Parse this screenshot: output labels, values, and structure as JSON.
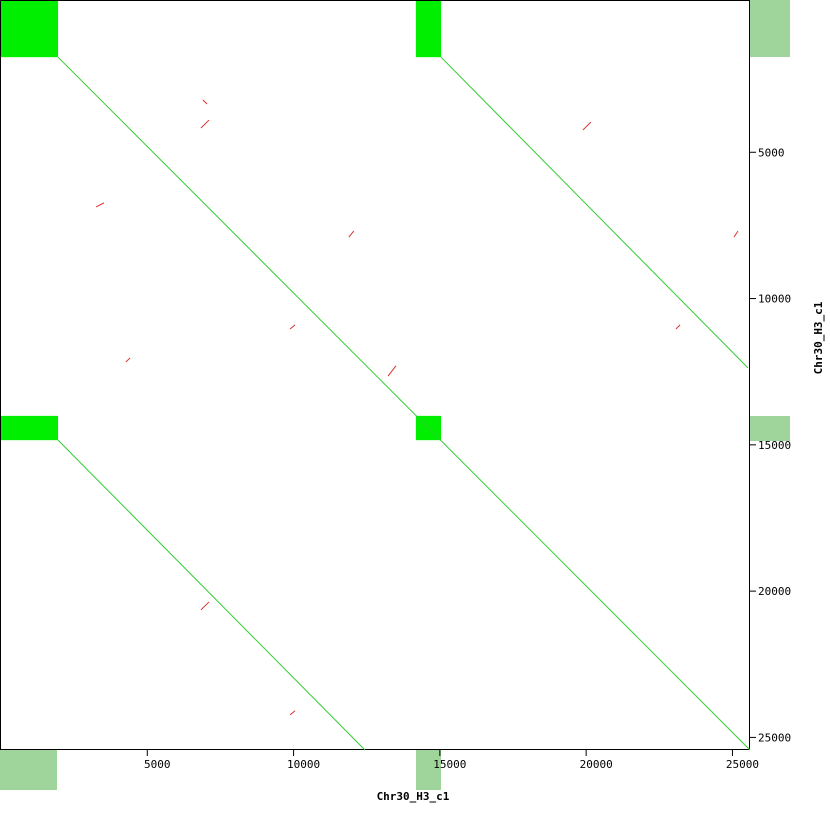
{
  "chart_data": {
    "type": "dotplot",
    "x_label": "Chr30_H3_c1",
    "y_label": "Chr30_H3_c1",
    "xlim": [
      0,
      25600
    ],
    "ylim": [
      25430,
      -170
    ],
    "xticks": [
      5000,
      10000,
      15000,
      20000,
      25000
    ],
    "yticks": [
      5000,
      10000,
      15000,
      20000,
      25000
    ],
    "block_color": "#00ee00",
    "blocks": [
      [
        0,
        1950,
        -170,
        1750
      ],
      [
        14180,
        15040,
        -170,
        1750
      ],
      [
        0,
        1950,
        14010,
        14840
      ],
      [
        14180,
        15040,
        14010,
        14840
      ]
    ],
    "series": [
      {
        "color": "#33cc33",
        "x": [
          1950,
          25600
        ],
        "values": [
          1750,
          25430
        ]
      },
      {
        "color": "#33cc33",
        "x": [
          15040,
          25530
        ],
        "values": [
          1750,
          12370
        ]
      },
      {
        "color": "#33cc33",
        "x": [
          1950,
          12440
        ],
        "values": [
          14840,
          25430
        ]
      },
      {
        "color": "#e03030",
        "x": [
          6900,
          7040
        ],
        "values": [
          3210,
          3350
        ]
      },
      {
        "color": "#e03030",
        "x": [
          6835,
          7110
        ],
        "values": [
          4170,
          3900
        ]
      },
      {
        "color": "#e03030",
        "x": [
          3250,
          3520
        ],
        "values": [
          6870,
          6730
        ]
      },
      {
        "color": "#e03030",
        "x": [
          11890,
          12060
        ],
        "values": [
          7900,
          7690
        ]
      },
      {
        "color": "#e03030",
        "x": [
          9880,
          10050
        ],
        "values": [
          11040,
          10900
        ]
      },
      {
        "color": "#e03030",
        "x": [
          4270,
          4410
        ],
        "values": [
          12170,
          12030
        ]
      },
      {
        "color": "#e03030",
        "x": [
          13230,
          13500
        ],
        "values": [
          12650,
          12300
        ]
      },
      {
        "color": "#e03030",
        "x": [
          19890,
          20160
        ],
        "values": [
          4240,
          3970
        ]
      },
      {
        "color": "#e03030",
        "x": [
          23070,
          23210
        ],
        "values": [
          11040,
          10900
        ]
      },
      {
        "color": "#e03030",
        "x": [
          6835,
          7110
        ],
        "values": [
          20640,
          20370
        ]
      },
      {
        "color": "#e03030",
        "x": [
          9880,
          10050
        ],
        "values": [
          24230,
          24090
        ]
      },
      {
        "color": "#e03030",
        "x": [
          25050,
          25190
        ],
        "values": [
          7900,
          7690
        ]
      }
    ]
  }
}
